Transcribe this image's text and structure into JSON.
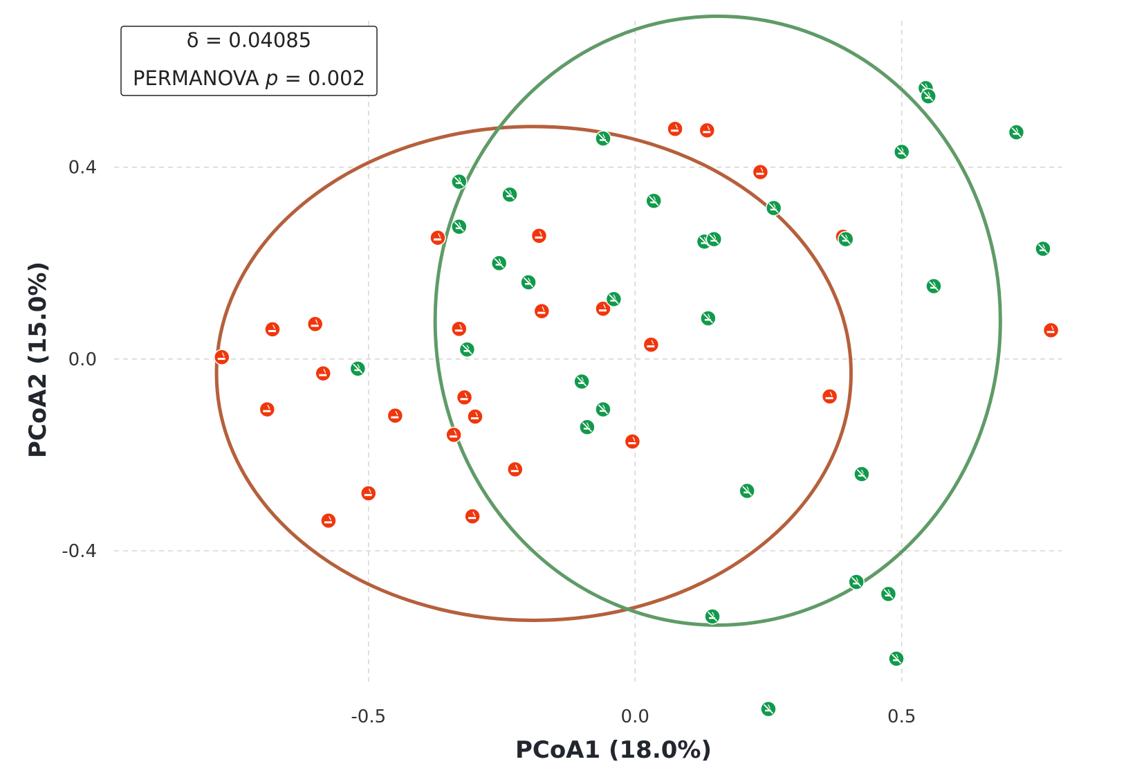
{
  "chart_data": {
    "type": "scatter",
    "xlabel": "PCoA1 (18.0%)",
    "ylabel": "PCoA2 (15.0%)",
    "xlim": [
      -0.99,
      0.8
    ],
    "ylim": [
      -0.68,
      0.72
    ],
    "x_ticks": [
      {
        "value": -0.5,
        "label": "-0.5"
      },
      {
        "value": 0.0,
        "label": "0.0"
      },
      {
        "value": 0.5,
        "label": "0.5"
      }
    ],
    "y_ticks": [
      {
        "value": 0.4,
        "label": "0.4"
      },
      {
        "value": 0.0,
        "label": "0.0"
      },
      {
        "value": -0.4,
        "label": "-0.4"
      }
    ],
    "grid": true,
    "stat_box": {
      "line1": "δ = 0.04085",
      "line2_prefix": "PERMANOVA ",
      "line2_p": "p",
      "line2_suffix": " = 0.002"
    },
    "series": [
      {
        "color": "#f0360d",
        "ellipse_color": "#b5603c",
        "icon": "cigarette-icon",
        "ellipse": {
          "cx": -0.19,
          "cy": -0.03,
          "rx": 0.595,
          "ry": 0.515
        },
        "points": [
          [
            -0.775,
            0.004
          ],
          [
            -0.68,
            0.062
          ],
          [
            -0.6,
            0.073
          ],
          [
            -0.69,
            -0.105
          ],
          [
            -0.585,
            -0.03
          ],
          [
            -0.45,
            -0.118
          ],
          [
            -0.5,
            -0.28
          ],
          [
            -0.575,
            -0.337
          ],
          [
            -0.37,
            0.253
          ],
          [
            -0.33,
            0.063
          ],
          [
            -0.32,
            -0.08
          ],
          [
            -0.3,
            -0.12
          ],
          [
            -0.34,
            -0.158
          ],
          [
            -0.305,
            -0.328
          ],
          [
            -0.225,
            -0.23
          ],
          [
            -0.18,
            0.257
          ],
          [
            -0.175,
            0.1
          ],
          [
            -0.06,
            0.105
          ],
          [
            0.075,
            0.48
          ],
          [
            0.135,
            0.477
          ],
          [
            0.235,
            0.39
          ],
          [
            0.03,
            0.03
          ],
          [
            -0.005,
            -0.172
          ],
          [
            0.39,
            0.255
          ],
          [
            0.365,
            -0.078
          ],
          [
            0.78,
            0.06
          ]
        ]
      },
      {
        "color": "#119a4b",
        "ellipse_color": "#5f9b67",
        "icon": "no-smoking-icon",
        "ellipse": {
          "cx": 0.155,
          "cy": 0.08,
          "rx": 0.53,
          "ry": 0.635
        },
        "points": [
          [
            -0.52,
            -0.02
          ],
          [
            -0.33,
            0.37
          ],
          [
            -0.33,
            0.276
          ],
          [
            -0.315,
            0.02
          ],
          [
            -0.235,
            0.343
          ],
          [
            -0.255,
            0.2
          ],
          [
            -0.2,
            0.16
          ],
          [
            -0.06,
            0.46
          ],
          [
            -0.04,
            0.125
          ],
          [
            -0.1,
            -0.047
          ],
          [
            -0.06,
            -0.105
          ],
          [
            -0.09,
            -0.142
          ],
          [
            0.035,
            0.33
          ],
          [
            0.13,
            0.245
          ],
          [
            0.148,
            0.25
          ],
          [
            0.137,
            0.085
          ],
          [
            0.26,
            0.315
          ],
          [
            0.395,
            0.25
          ],
          [
            0.5,
            0.432
          ],
          [
            0.545,
            0.565
          ],
          [
            0.55,
            0.548
          ],
          [
            0.715,
            0.473
          ],
          [
            0.56,
            0.152
          ],
          [
            0.765,
            0.23
          ],
          [
            0.21,
            -0.275
          ],
          [
            0.145,
            -0.537
          ],
          [
            0.425,
            -0.24
          ],
          [
            0.415,
            -0.465
          ],
          [
            0.475,
            -0.49
          ],
          [
            0.49,
            -0.625
          ],
          [
            0.25,
            -0.73
          ]
        ]
      }
    ]
  }
}
